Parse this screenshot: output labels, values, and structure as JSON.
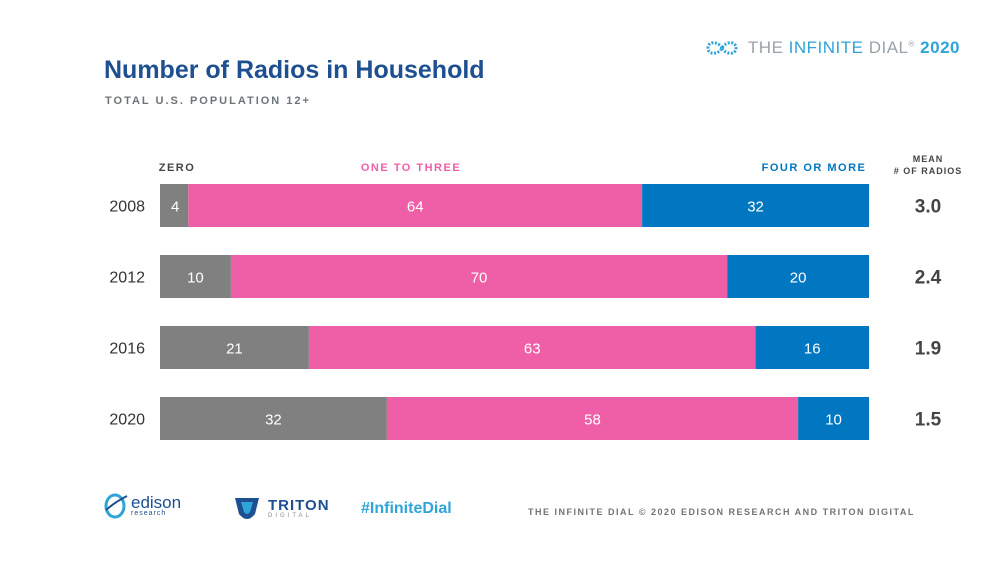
{
  "brand": {
    "prefix": "THE ",
    "highlight": "INFINITE",
    "suffix": " DIAL",
    "tm": "®",
    "year": "2020",
    "colors": {
      "gray": "#9aa3ab",
      "blue": "#2fa4d9"
    }
  },
  "title": "Number of Radios in Household",
  "subtitle": "TOTAL U.S. POPULATION 12+",
  "chart_data": {
    "type": "bar",
    "orientation": "horizontal",
    "stacked": true,
    "categories": [
      "2008",
      "2012",
      "2016",
      "2020"
    ],
    "series": [
      {
        "name": "ZERO",
        "values": [
          4,
          10,
          21,
          32
        ],
        "color": "#808080",
        "label_color": "#444444"
      },
      {
        "name": "ONE TO THREE",
        "values": [
          64,
          70,
          63,
          58
        ],
        "color": "#ef5fa7",
        "label_color": "#ef5fa7"
      },
      {
        "name": "FOUR OR MORE",
        "values": [
          32,
          20,
          16,
          10
        ],
        "color": "#0077c0",
        "label_color": "#0077c0"
      }
    ],
    "mean_header": [
      "MEAN",
      "# OF RADIOS"
    ],
    "mean_values": [
      "3.0",
      "2.4",
      "1.9",
      "1.5"
    ],
    "xlim": [
      0,
      100
    ],
    "legend_position": "top",
    "grid": false
  },
  "footer": {
    "hashtag": "#InfiniteDial",
    "copyright": "THE INFINITE DIAL   © 2020 EDISON RESEARCH AND TRITON DIGITAL",
    "edison": {
      "word": "edison",
      "sub": "research"
    },
    "triton": {
      "word": "TRITON",
      "sub": "DIGITAL"
    }
  }
}
